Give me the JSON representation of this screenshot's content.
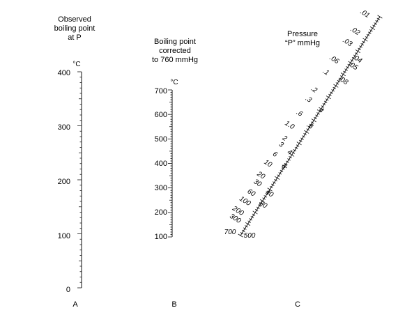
{
  "scale_a": {
    "title": [
      "Observed",
      "boiling point",
      "at P"
    ],
    "unit": "°C",
    "labels": [
      "400",
      "300",
      "200",
      "100",
      "0"
    ],
    "letter": "A"
  },
  "scale_b": {
    "title": [
      "Boiling point",
      "corrected",
      "to 760 mmHg"
    ],
    "unit": "°C",
    "labels": [
      "700",
      "600",
      "500",
      "400",
      "300",
      "200",
      "100"
    ],
    "letter": "B"
  },
  "scale_c": {
    "title": [
      "Pressure",
      "“P” mmHg"
    ],
    "labels_left": [
      ".01",
      ".02",
      ".03",
      ".06",
      ".1",
      ".2",
      ".3",
      ".6",
      "1.0",
      "2",
      "3",
      "6",
      "10",
      "20",
      "30",
      "60",
      "100",
      "200",
      "300",
      "700"
    ],
    "labels_right": [
      ".04",
      ".05",
      ".08",
      ".4",
      ".8",
      "4",
      "8",
      "40",
      "80",
      "500"
    ],
    "letter": "C"
  }
}
